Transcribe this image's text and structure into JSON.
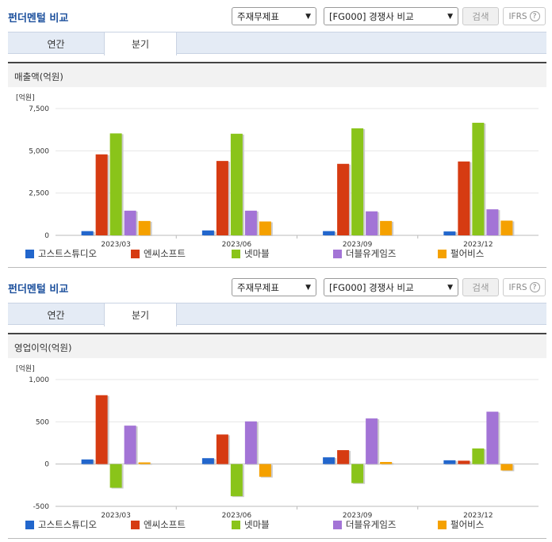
{
  "controls": {
    "title": "펀더멘털 비교",
    "select1": "주재무제표",
    "select2": "[FG000] 경쟁사 비교",
    "search": "검색",
    "ifrs": "IFRS",
    "help": "?",
    "tabs": [
      "연간",
      "분기"
    ]
  },
  "legend": [
    {
      "name": "고스트스튜디오",
      "color": "#2266cc"
    },
    {
      "name": "엔씨소프트",
      "color": "#d63b12"
    },
    {
      "name": "넷마블",
      "color": "#8ac41a"
    },
    {
      "name": "더블유게임즈",
      "color": "#a374d6"
    },
    {
      "name": "펄어비스",
      "color": "#f5a100"
    }
  ],
  "chart_data": [
    {
      "type": "bar",
      "title": "매출액(억원)",
      "ylabel": "[억원]",
      "ylim": [
        0,
        7500
      ],
      "yticks": [
        "7,500",
        "5,000",
        "2,500",
        "0"
      ],
      "ytick_values": [
        7500,
        5000,
        2500,
        0
      ],
      "categories": [
        "2023/03",
        "2023/06",
        "2023/09",
        "2023/12"
      ],
      "series": [
        {
          "name": "고스트스튜디오",
          "values": [
            250,
            290,
            250,
            230
          ]
        },
        {
          "name": "엔씨소프트",
          "values": [
            4790,
            4400,
            4230,
            4370
          ]
        },
        {
          "name": "넷마블",
          "values": [
            6030,
            6010,
            6330,
            6660
          ]
        },
        {
          "name": "더블유게임즈",
          "values": [
            1460,
            1460,
            1420,
            1540
          ]
        },
        {
          "name": "펄어비스",
          "values": [
            850,
            820,
            850,
            870
          ]
        }
      ]
    },
    {
      "type": "bar",
      "title": "영업이익(억원)",
      "ylabel": "[억원]",
      "ylim": [
        -500,
        1000
      ],
      "yticks": [
        "1,000",
        "500",
        "0",
        "-500"
      ],
      "ytick_values": [
        1000,
        500,
        0,
        -500
      ],
      "categories": [
        "2023/03",
        "2023/06",
        "2023/09",
        "2023/12"
      ],
      "series": [
        {
          "name": "고스트스튜디오",
          "values": [
            55,
            70,
            80,
            45
          ]
        },
        {
          "name": "엔씨소프트",
          "values": [
            815,
            350,
            165,
            40
          ]
        },
        {
          "name": "넷마블",
          "values": [
            -280,
            -380,
            -225,
            185
          ]
        },
        {
          "name": "더블유게임즈",
          "values": [
            455,
            505,
            540,
            620
          ]
        },
        {
          "name": "펄어비스",
          "values": [
            20,
            -150,
            25,
            -75
          ]
        }
      ]
    }
  ]
}
